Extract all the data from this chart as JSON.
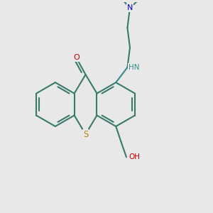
{
  "bg_color": "#e8e8e8",
  "bond_color": "#3a7a6a",
  "S_color": "#b8860b",
  "N_color": "#0000cc",
  "O_color": "#cc0000",
  "NH_color": "#3a8a8a",
  "line_width": 1.5,
  "figsize": [
    3.0,
    3.0
  ],
  "dpi": 100,
  "xlim": [
    0,
    10
  ],
  "ylim": [
    0,
    10
  ]
}
